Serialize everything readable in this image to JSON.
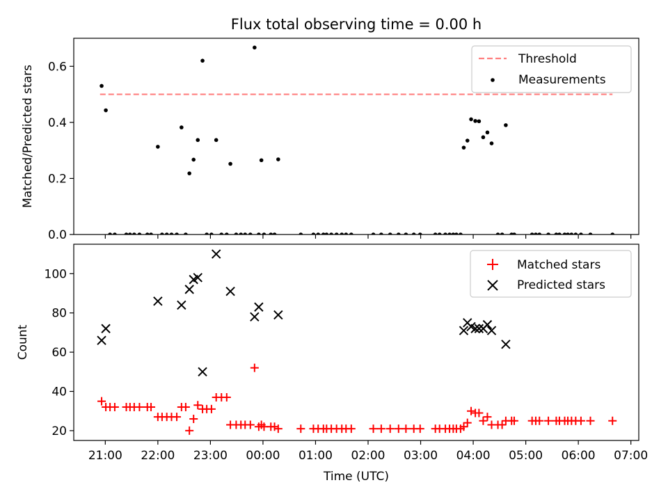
{
  "chart_data": [
    {
      "type": "scatter",
      "title": "Flux total observing time = 0.00 h",
      "xlabel": "",
      "ylabel": "Matched/Predicted stars",
      "xlim": [
        -0.6,
        10.15
      ],
      "ylim": [
        0.0,
        0.7
      ],
      "y_ticks": [
        0.0,
        0.2,
        0.4,
        0.6
      ],
      "y_tick_labels": [
        "0.0",
        "0.2",
        "0.4",
        "0.6"
      ],
      "x_tick_values": [
        0,
        1,
        2,
        3,
        4,
        5,
        6,
        7,
        8,
        9,
        10
      ],
      "legend": {
        "position": "upper right",
        "entries": [
          "Threshold",
          "Measurements"
        ]
      },
      "threshold": {
        "name": "Threshold",
        "value": 0.5,
        "x_range": [
          -0.1,
          9.65
        ],
        "color": "#ff7f7f",
        "style": "dashed"
      },
      "series": [
        {
          "name": "Measurements",
          "color": "#000000",
          "marker": "dot",
          "points": [
            [
              -0.07,
              0.53
            ],
            [
              0.01,
              0.443
            ],
            [
              0.09,
              0
            ],
            [
              0.18,
              0
            ],
            [
              0.4,
              0
            ],
            [
              0.47,
              0
            ],
            [
              0.55,
              0
            ],
            [
              0.65,
              0
            ],
            [
              0.8,
              0
            ],
            [
              0.87,
              0
            ],
            [
              1.0,
              0.313
            ],
            [
              1.08,
              0
            ],
            [
              1.17,
              0
            ],
            [
              1.26,
              0
            ],
            [
              1.36,
              0
            ],
            [
              1.45,
              0.382
            ],
            [
              1.53,
              0
            ],
            [
              1.6,
              0.218
            ],
            [
              1.68,
              0.267
            ],
            [
              1.76,
              0.337
            ],
            [
              1.85,
              0.62
            ],
            [
              1.93,
              0
            ],
            [
              2.02,
              0
            ],
            [
              2.11,
              0.337
            ],
            [
              2.21,
              0
            ],
            [
              2.31,
              0
            ],
            [
              2.38,
              0.252
            ],
            [
              2.49,
              0
            ],
            [
              2.58,
              0
            ],
            [
              2.66,
              0
            ],
            [
              2.76,
              0
            ],
            [
              2.84,
              0.667
            ],
            [
              2.92,
              0
            ],
            [
              2.97,
              0.265
            ],
            [
              3.02,
              0
            ],
            [
              3.15,
              0
            ],
            [
              3.22,
              0
            ],
            [
              3.29,
              0.268
            ],
            [
              3.72,
              0
            ],
            [
              3.96,
              0
            ],
            [
              4.05,
              0
            ],
            [
              4.15,
              0
            ],
            [
              4.21,
              0
            ],
            [
              4.3,
              0
            ],
            [
              4.4,
              0
            ],
            [
              4.5,
              0
            ],
            [
              4.58,
              0
            ],
            [
              4.68,
              0
            ],
            [
              5.1,
              0
            ],
            [
              5.25,
              0
            ],
            [
              5.42,
              0
            ],
            [
              5.58,
              0
            ],
            [
              5.72,
              0
            ],
            [
              5.87,
              0
            ],
            [
              5.99,
              0
            ],
            [
              6.28,
              0
            ],
            [
              6.36,
              0
            ],
            [
              6.47,
              0
            ],
            [
              6.55,
              0
            ],
            [
              6.62,
              0
            ],
            [
              6.68,
              0
            ],
            [
              6.76,
              0
            ],
            [
              6.82,
              0.31
            ],
            [
              6.89,
              0.335
            ],
            [
              6.96,
              0.411
            ],
            [
              7.04,
              0.405
            ],
            [
              7.11,
              0.404
            ],
            [
              7.19,
              0.347
            ],
            [
              7.27,
              0.364
            ],
            [
              7.35,
              0.325
            ],
            [
              7.47,
              0
            ],
            [
              7.55,
              0
            ],
            [
              7.62,
              0.39
            ],
            [
              7.73,
              0
            ],
            [
              7.78,
              0
            ],
            [
              8.12,
              0
            ],
            [
              8.19,
              0
            ],
            [
              8.26,
              0
            ],
            [
              8.43,
              0
            ],
            [
              8.58,
              0
            ],
            [
              8.64,
              0
            ],
            [
              8.74,
              0
            ],
            [
              8.8,
              0
            ],
            [
              8.87,
              0
            ],
            [
              8.95,
              0
            ],
            [
              9.05,
              0
            ],
            [
              9.23,
              0
            ],
            [
              9.65,
              0
            ]
          ]
        }
      ]
    },
    {
      "type": "scatter",
      "title": "",
      "xlabel": "Time (UTC)",
      "ylabel": "Count",
      "xlim": [
        -0.6,
        10.15
      ],
      "ylim": [
        15,
        115
      ],
      "y_ticks": [
        20,
        40,
        60,
        80,
        100
      ],
      "y_tick_labels": [
        "20",
        "40",
        "60",
        "80",
        "100"
      ],
      "x_tick_values": [
        0,
        1,
        2,
        3,
        4,
        5,
        6,
        7,
        8,
        9,
        10
      ],
      "x_tick_labels": [
        "21:00",
        "22:00",
        "23:00",
        "00:00",
        "01:00",
        "02:00",
        "03:00",
        "04:00",
        "05:00",
        "06:00",
        "07:00"
      ],
      "legend": {
        "position": "upper right",
        "entries": [
          "Matched stars",
          "Predicted stars"
        ]
      },
      "series": [
        {
          "name": "Matched stars",
          "color": "#ff0000",
          "marker": "plus",
          "points": [
            [
              -0.07,
              35
            ],
            [
              0.01,
              32
            ],
            [
              0.09,
              32
            ],
            [
              0.18,
              32
            ],
            [
              0.4,
              32
            ],
            [
              0.47,
              32
            ],
            [
              0.55,
              32
            ],
            [
              0.65,
              32
            ],
            [
              0.8,
              32
            ],
            [
              0.87,
              32
            ],
            [
              1.0,
              27
            ],
            [
              1.08,
              27
            ],
            [
              1.17,
              27
            ],
            [
              1.26,
              27
            ],
            [
              1.36,
              27
            ],
            [
              1.45,
              32
            ],
            [
              1.53,
              32
            ],
            [
              1.6,
              20
            ],
            [
              1.68,
              26
            ],
            [
              1.76,
              33
            ],
            [
              1.85,
              31
            ],
            [
              1.93,
              31
            ],
            [
              2.02,
              31
            ],
            [
              2.11,
              37
            ],
            [
              2.21,
              37
            ],
            [
              2.31,
              37
            ],
            [
              2.38,
              23
            ],
            [
              2.49,
              23
            ],
            [
              2.58,
              23
            ],
            [
              2.66,
              23
            ],
            [
              2.76,
              23
            ],
            [
              2.84,
              52
            ],
            [
              2.92,
              22
            ],
            [
              2.97,
              23
            ],
            [
              3.02,
              22
            ],
            [
              3.15,
              22
            ],
            [
              3.22,
              22
            ],
            [
              3.29,
              21
            ],
            [
              3.72,
              21
            ],
            [
              3.96,
              21
            ],
            [
              4.05,
              21
            ],
            [
              4.15,
              21
            ],
            [
              4.21,
              21
            ],
            [
              4.3,
              21
            ],
            [
              4.4,
              21
            ],
            [
              4.5,
              21
            ],
            [
              4.58,
              21
            ],
            [
              4.68,
              21
            ],
            [
              5.1,
              21
            ],
            [
              5.25,
              21
            ],
            [
              5.42,
              21
            ],
            [
              5.58,
              21
            ],
            [
              5.72,
              21
            ],
            [
              5.87,
              21
            ],
            [
              5.99,
              21
            ],
            [
              6.28,
              21
            ],
            [
              6.36,
              21
            ],
            [
              6.47,
              21
            ],
            [
              6.55,
              21
            ],
            [
              6.62,
              21
            ],
            [
              6.68,
              21
            ],
            [
              6.76,
              21
            ],
            [
              6.82,
              22
            ],
            [
              6.89,
              24
            ],
            [
              6.96,
              30
            ],
            [
              7.04,
              29
            ],
            [
              7.11,
              29
            ],
            [
              7.19,
              25
            ],
            [
              7.27,
              27
            ],
            [
              7.35,
              23
            ],
            [
              7.47,
              23
            ],
            [
              7.55,
              23
            ],
            [
              7.62,
              25
            ],
            [
              7.73,
              25
            ],
            [
              7.78,
              25
            ],
            [
              8.12,
              25
            ],
            [
              8.19,
              25
            ],
            [
              8.26,
              25
            ],
            [
              8.43,
              25
            ],
            [
              8.58,
              25
            ],
            [
              8.64,
              25
            ],
            [
              8.74,
              25
            ],
            [
              8.8,
              25
            ],
            [
              8.87,
              25
            ],
            [
              8.95,
              25
            ],
            [
              9.05,
              25
            ],
            [
              9.23,
              25
            ],
            [
              9.65,
              25
            ]
          ]
        },
        {
          "name": "Predicted stars",
          "color": "#000000",
          "marker": "x",
          "points": [
            [
              -0.07,
              66
            ],
            [
              0.01,
              72
            ],
            [
              1.0,
              86
            ],
            [
              1.45,
              84
            ],
            [
              1.6,
              92
            ],
            [
              1.68,
              97
            ],
            [
              1.76,
              98
            ],
            [
              1.85,
              50
            ],
            [
              2.11,
              110
            ],
            [
              2.38,
              91
            ],
            [
              2.84,
              78
            ],
            [
              2.92,
              83
            ],
            [
              3.29,
              79
            ],
            [
              6.82,
              71
            ],
            [
              6.89,
              75
            ],
            [
              6.96,
              73
            ],
            [
              7.04,
              72
            ],
            [
              7.11,
              72
            ],
            [
              7.19,
              72
            ],
            [
              7.27,
              74
            ],
            [
              7.35,
              71
            ],
            [
              7.62,
              64
            ]
          ]
        }
      ]
    }
  ]
}
